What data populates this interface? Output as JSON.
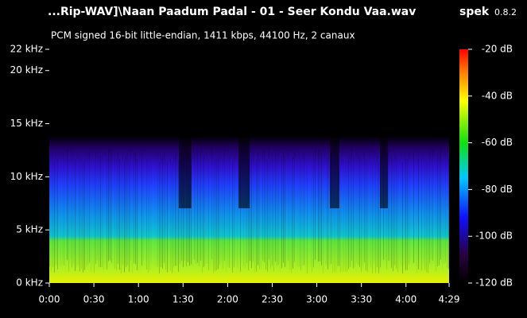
{
  "chart_data": {
    "type": "spectrogram",
    "title": "...Rip-WAV]\\Naan Paadum Padal - 01 - Seer Kondu Vaa.wav",
    "app_name": "spek",
    "app_version": "0.8.2",
    "subtitle": "PCM signed 16-bit little-endian, 1411 kbps, 44100 Hz, 2 canaux",
    "xlim": [
      0,
      269
    ],
    "xticks": [
      {
        "value": 0,
        "label": "0:00"
      },
      {
        "value": 30,
        "label": "0:30"
      },
      {
        "value": 60,
        "label": "1:00"
      },
      {
        "value": 90,
        "label": "1:30"
      },
      {
        "value": 120,
        "label": "2:00"
      },
      {
        "value": 150,
        "label": "2:30"
      },
      {
        "value": 180,
        "label": "3:00"
      },
      {
        "value": 210,
        "label": "3:30"
      },
      {
        "value": 240,
        "label": "4:00"
      },
      {
        "value": 269,
        "label": "4:29"
      }
    ],
    "ylim": [
      0,
      22
    ],
    "yticks": [
      {
        "value": 0,
        "label": "0 kHz"
      },
      {
        "value": 5,
        "label": "5 kHz"
      },
      {
        "value": 10,
        "label": "10 kHz"
      },
      {
        "value": 15,
        "label": "15 kHz"
      },
      {
        "value": 20,
        "label": "20 kHz"
      },
      {
        "value": 22,
        "label": "22 kHz"
      }
    ],
    "colorbar_lim": [
      -120,
      -20
    ],
    "colorbar_ticks": [
      {
        "value": -20,
        "label": "-20 dB"
      },
      {
        "value": -40,
        "label": "-40 dB"
      },
      {
        "value": -60,
        "label": "-60 dB"
      },
      {
        "value": -80,
        "label": "-80 dB"
      },
      {
        "value": -100,
        "label": "-100 dB"
      },
      {
        "value": -120,
        "label": "-120 dB"
      }
    ]
  }
}
